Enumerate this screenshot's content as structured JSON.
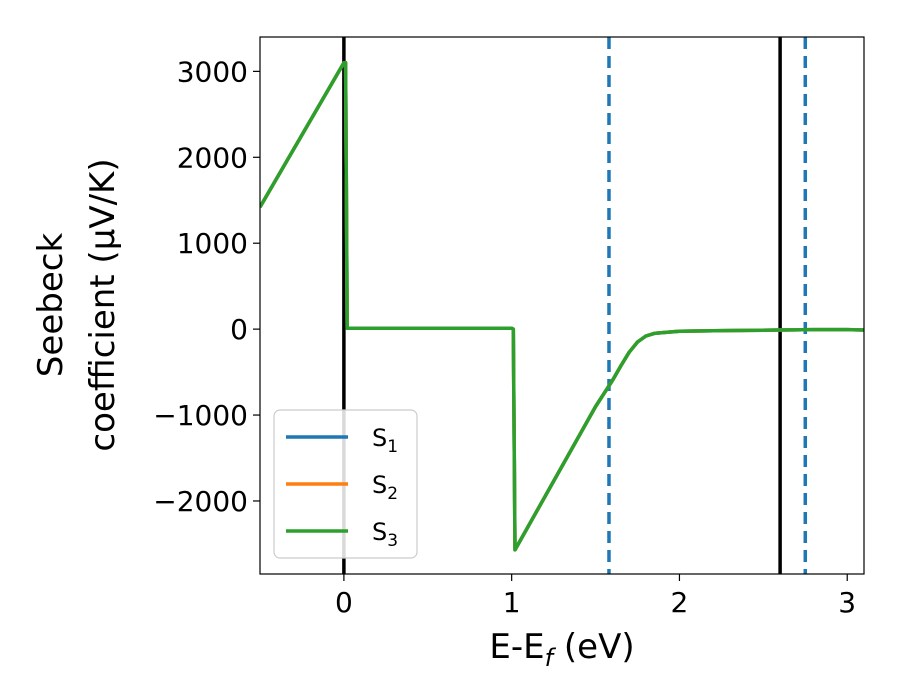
{
  "chart_data": {
    "type": "line",
    "title": "",
    "xlabel": "E-E_f (eV)",
    "xlabel_parts": {
      "base": "E-E",
      "sub": "f",
      "rest": " (eV)"
    },
    "ylabel_line1": "Seebeck",
    "ylabel_line2": "coefficient  (μV/K)",
    "xlim": [
      -0.5,
      3.1
    ],
    "ylim": [
      -2850,
      3400
    ],
    "xticks": [
      0,
      1,
      2,
      3
    ],
    "xtick_labels": [
      "0",
      "1",
      "2",
      "3"
    ],
    "yticks": [
      -2000,
      -1000,
      0,
      1000,
      2000,
      3000
    ],
    "ytick_labels": [
      "−2000",
      "−1000",
      "0",
      "1000",
      "2000",
      "3000"
    ],
    "grid": false,
    "legend_placement": "lower-left",
    "vlines": [
      {
        "x": 0.0,
        "style": "solid",
        "color": "#000000"
      },
      {
        "x": 2.6,
        "style": "solid",
        "color": "#000000"
      },
      {
        "x": 1.58,
        "style": "dashed",
        "color": "#1f77b4"
      },
      {
        "x": 2.75,
        "style": "dashed",
        "color": "#1f77b4"
      }
    ],
    "series": [
      {
        "name": "S₁",
        "legend_base": "S",
        "legend_sub": "1",
        "color": "#1f77b4",
        "x": [
          -0.5,
          0.0,
          0.01,
          0.02,
          1.0,
          1.01,
          1.02,
          1.5,
          1.6,
          1.65,
          1.7,
          1.75,
          1.8,
          1.85,
          1.9,
          2.0,
          2.2,
          2.4,
          2.6,
          2.8,
          3.0,
          3.1
        ],
        "y": [
          1420,
          3100,
          3100,
          10,
          10,
          0,
          -2570,
          -900,
          -600,
          -430,
          -270,
          -150,
          -80,
          -50,
          -40,
          -25,
          -20,
          -15,
          -10,
          -5,
          -5,
          -10
        ]
      },
      {
        "name": "S₂",
        "legend_base": "S",
        "legend_sub": "2",
        "color": "#ff7f0e",
        "x": [
          -0.5,
          0.0,
          0.01,
          0.02,
          1.0,
          1.01,
          1.02,
          1.5,
          1.6,
          1.65,
          1.7,
          1.75,
          1.8,
          1.85,
          1.9,
          2.0,
          2.2,
          2.4,
          2.6,
          2.8,
          3.0,
          3.1
        ],
        "y": [
          1420,
          3100,
          3100,
          10,
          10,
          0,
          -2570,
          -900,
          -600,
          -430,
          -270,
          -150,
          -80,
          -50,
          -40,
          -25,
          -20,
          -15,
          -10,
          -5,
          -5,
          -10
        ]
      },
      {
        "name": "S₃",
        "legend_base": "S",
        "legend_sub": "3",
        "color": "#2ca02c",
        "x": [
          -0.5,
          0.0,
          0.01,
          0.02,
          1.0,
          1.01,
          1.02,
          1.5,
          1.6,
          1.65,
          1.7,
          1.75,
          1.8,
          1.85,
          1.9,
          2.0,
          2.2,
          2.4,
          2.6,
          2.8,
          3.0,
          3.1
        ],
        "y": [
          1420,
          3100,
          3100,
          10,
          10,
          0,
          -2570,
          -900,
          -600,
          -430,
          -270,
          -150,
          -80,
          -50,
          -40,
          -25,
          -20,
          -15,
          -10,
          -5,
          -5,
          -10
        ]
      }
    ]
  }
}
